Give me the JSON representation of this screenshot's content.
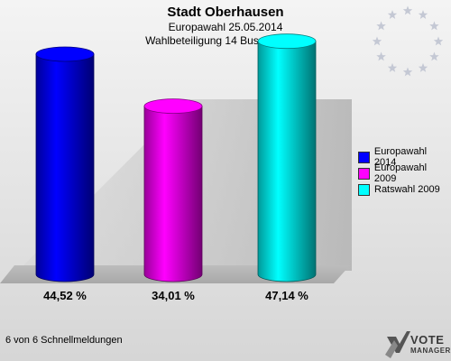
{
  "header": {
    "title": "Stadt Oberhausen",
    "subtitle": "Europawahl 25.05.2014",
    "subtitle2": "Wahlbeteiligung 14 Buschhausen"
  },
  "chart_data": {
    "type": "bar",
    "categories": [
      "Europawahl 2014",
      "Europawahl 2009",
      "Ratswahl 2009"
    ],
    "values": [
      44.52,
      34.01,
      47.14
    ],
    "value_labels": [
      "44,52 %",
      "34,01 %",
      "47,14 %"
    ],
    "colors": [
      "#0000ff",
      "#ff00ff",
      "#00ffff"
    ],
    "ylim": [
      0,
      50
    ],
    "legend_position": "right"
  },
  "legend": {
    "items": [
      {
        "label": "Europawahl 2014",
        "color": "#0000ff"
      },
      {
        "label": "Europawahl 2009",
        "color": "#ff00ff"
      },
      {
        "label": "Ratswahl 2009",
        "color": "#00ffff"
      }
    ]
  },
  "footer": {
    "text": "6 von 6 Schnellmeldungen"
  },
  "logo": {
    "line1": "VOTE",
    "line2": "MANAGER"
  },
  "icons": {
    "eu_flag": "eu-stars-icon",
    "logo": "vote-manager-logo-icon"
  }
}
